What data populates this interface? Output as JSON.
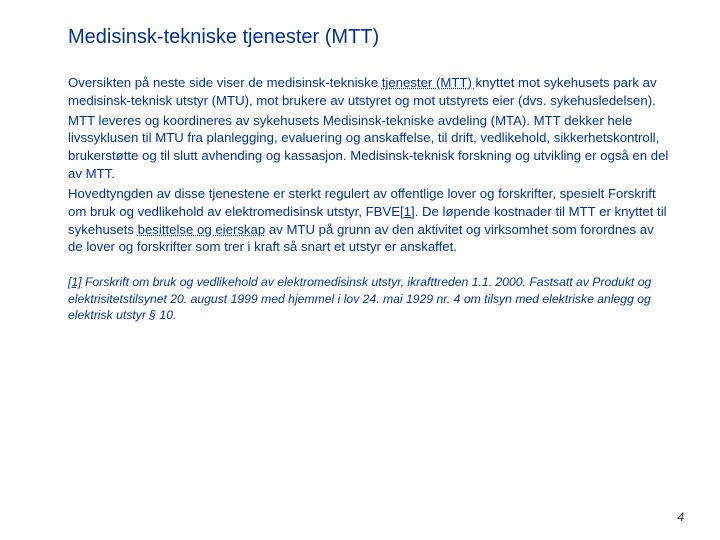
{
  "colors": {
    "text": "#003399",
    "background": "#ffffff",
    "pagenum": "#333333"
  },
  "title": "Medisinsk-tekniske tjenester (MTT)",
  "paragraphs": {
    "p1_a": "Oversikten på neste side viser de medisinsk-tekniske ",
    "p1_tj": "tjenester (MTT) ",
    "p1_b": "knyttet mot sykehusets park av medisinsk-teknisk utstyr (MTU), mot brukere av utstyret og mot utstyrets eier (dvs. sykehusledelsen).",
    "p2": "MTT leveres og koordineres av sykehusets Medisinsk-tekniske avdeling (MTA). MTT dekker hele livssyklusen til MTU fra planlegging, evaluering og anskaffelse, til drift, vedlikehold, sikkerhetskontroll, brukerstøtte og til slutt avhending og kassasjon. Medisinsk-teknisk forskning og utvikling er også en del av MTT.",
    "p3_a": "Hovedtyngden av disse tjenestene er sterkt regulert av offentlige lover og forskrifter, spesielt Forskrift om bruk og vedlikehold av elektromedisinsk utstyr, FBVE",
    "p3_ref": "[1]",
    "p3_b": ". De løpende kostnader til MTT er knyttet til sykehusets ",
    "p3_u": "besittelse og eierskap",
    "p3_c": " av MTU på grunn av den aktivitet og virksomhet som forordnes av de lover og forskrifter som trer i kraft så snart et utstyr er anskaffet."
  },
  "footnote": {
    "ref": "[1]",
    "text": " Forskrift om bruk og vedlikehold av elektromedisinsk utstyr, ikrafttreden 1.1. 2000. Fastsatt av Produkt og elektrisitetstilsynet 20. august 1999 med hjemmel i lov 24. mai 1929 nr. 4 om tilsyn med elektriske anlegg og elektrisk utstyr § 10."
  },
  "pagenum": "4"
}
